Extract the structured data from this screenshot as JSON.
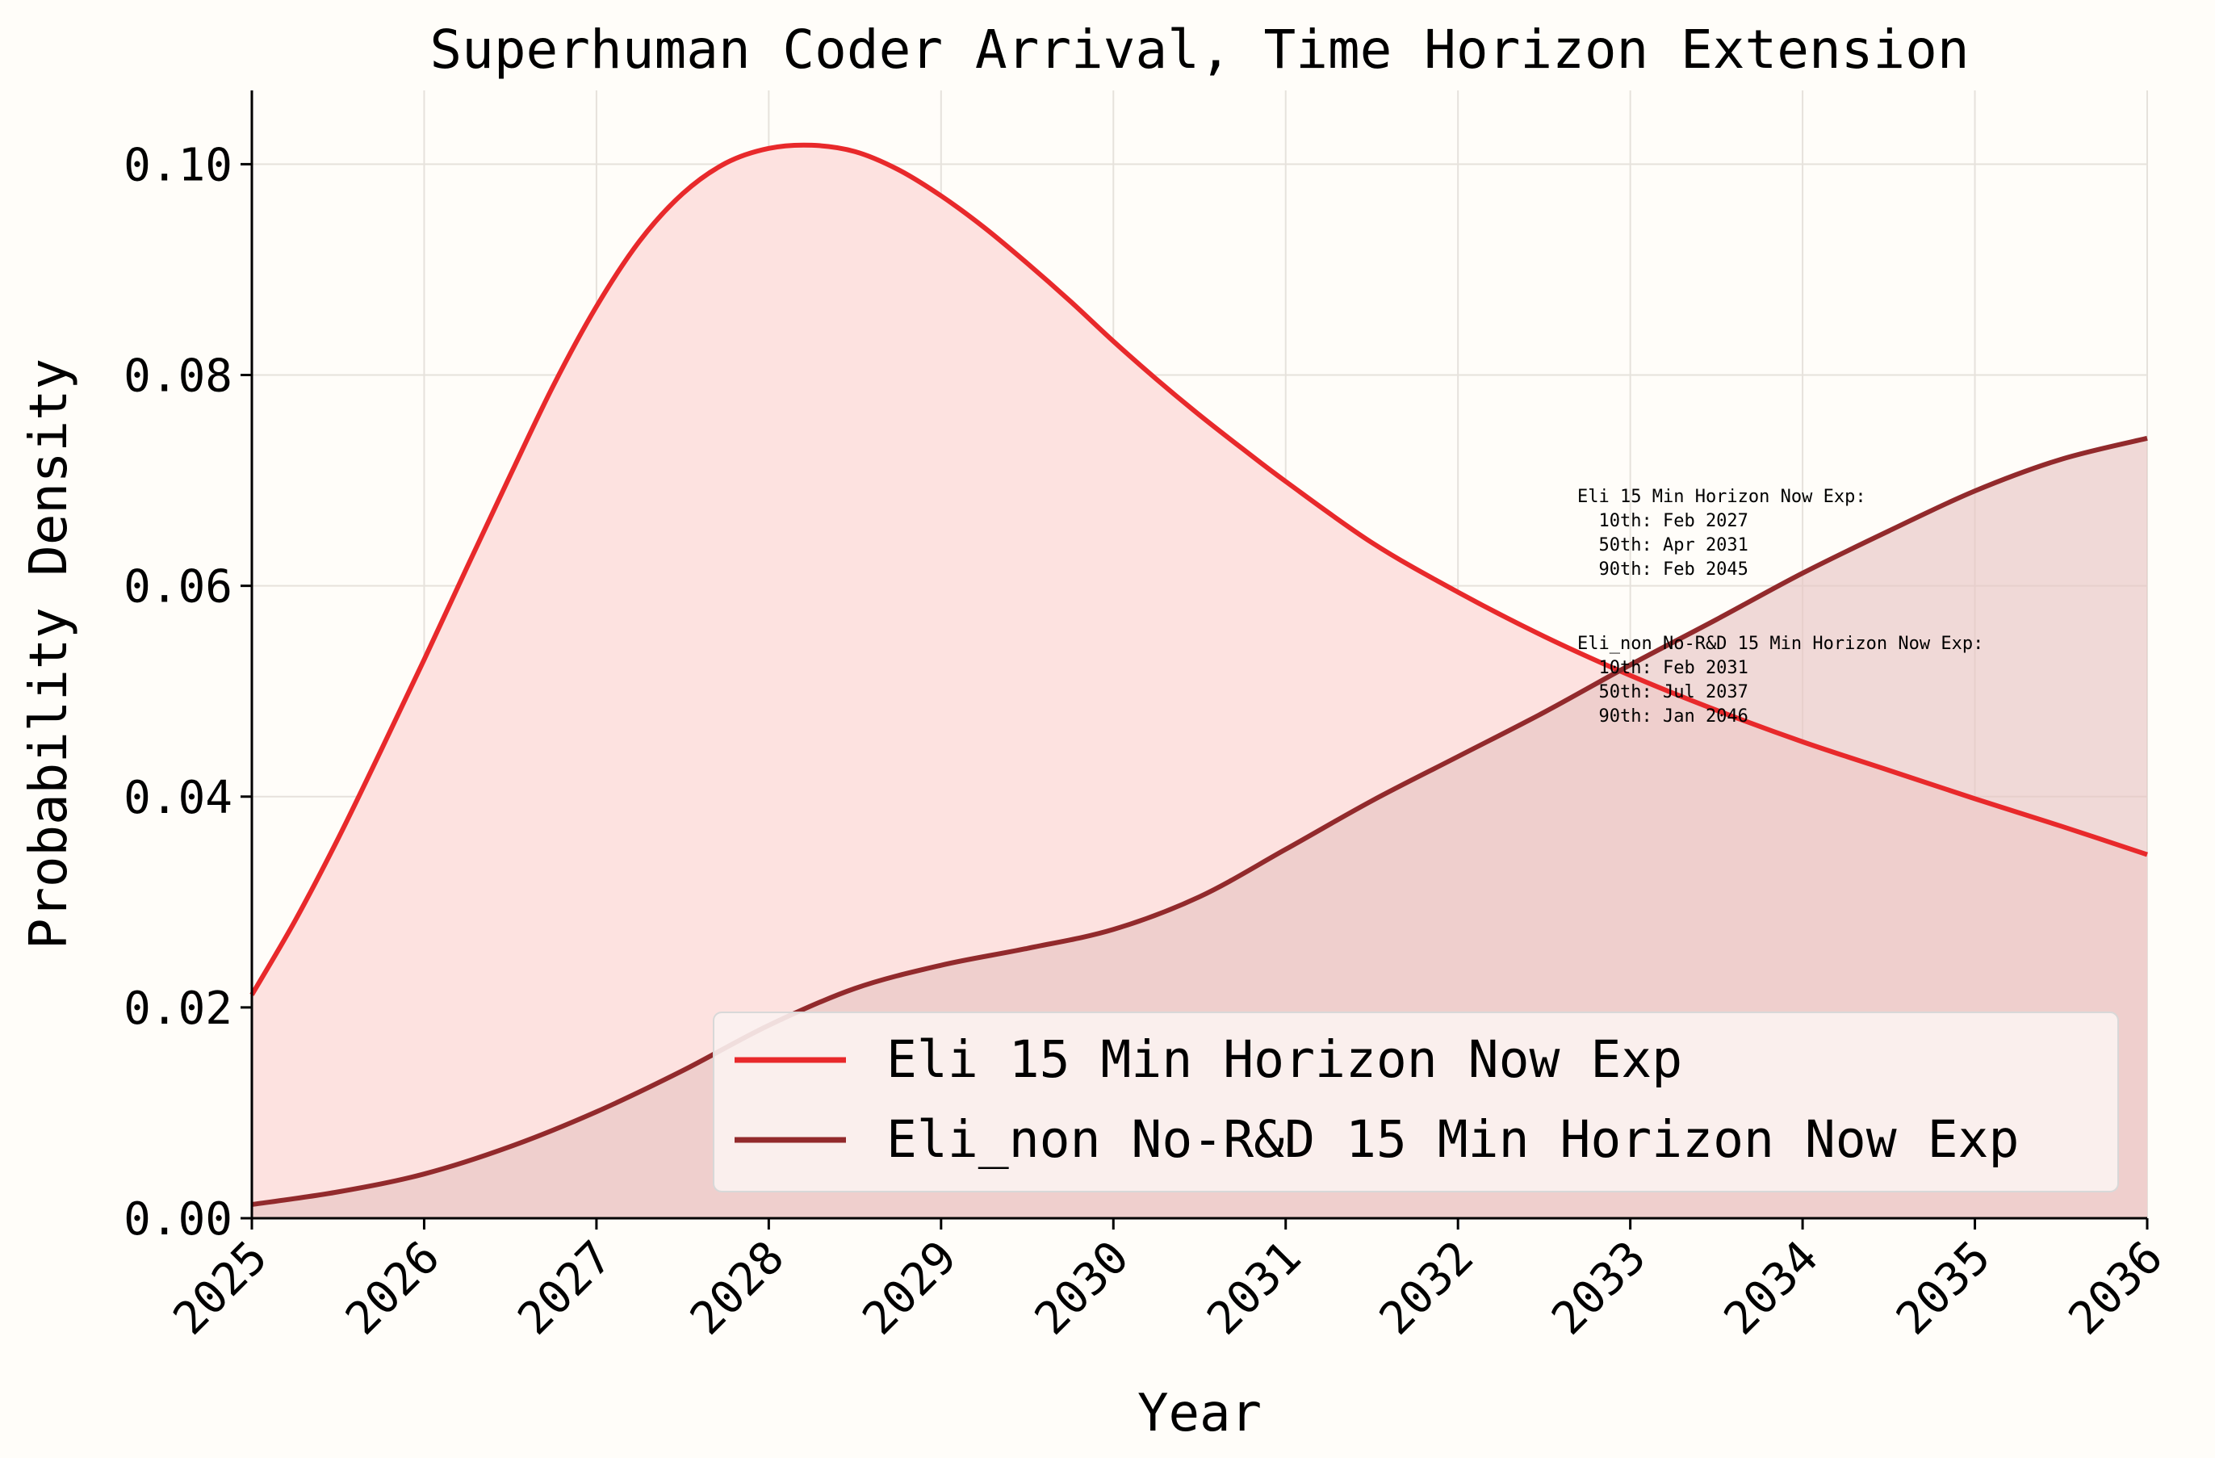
{
  "chart_data": {
    "type": "line",
    "title": "Superhuman Coder Arrival, Time Horizon Extension",
    "xlabel": "Year",
    "ylabel": "Probability Density",
    "xlim": [
      2025,
      2036
    ],
    "ylim": [
      0,
      0.107
    ],
    "x_ticks": [
      2025,
      2026,
      2027,
      2028,
      2029,
      2030,
      2031,
      2032,
      2033,
      2034,
      2035,
      2036
    ],
    "y_ticks": [
      0.0,
      0.02,
      0.04,
      0.06,
      0.08,
      0.1
    ],
    "y_tick_labels": [
      "0.00",
      "0.02",
      "0.04",
      "0.06",
      "0.08",
      "0.10"
    ],
    "grid": true,
    "legend_position": "lower-right",
    "series": [
      {
        "name": "Eli 15 Min Horizon Now Exp",
        "color": "#e8292b",
        "fill": "#fde2e0",
        "x": [
          2025,
          2025.25,
          2025.5,
          2025.75,
          2026,
          2026.25,
          2026.5,
          2026.75,
          2027,
          2027.25,
          2027.5,
          2027.75,
          2028,
          2028.25,
          2028.5,
          2028.75,
          2029,
          2029.25,
          2029.5,
          2029.75,
          2030,
          2030.25,
          2030.5,
          2030.75,
          2031,
          2031.5,
          2032,
          2032.5,
          2033,
          2033.5,
          2034,
          2034.5,
          2035,
          2035.5,
          2036
        ],
        "y": [
          0.0212,
          0.0282,
          0.036,
          0.0444,
          0.053,
          0.0618,
          0.0705,
          0.079,
          0.0865,
          0.0927,
          0.0972,
          0.1001,
          0.1015,
          0.1018,
          0.1012,
          0.0995,
          0.097,
          0.094,
          0.0906,
          0.087,
          0.0832,
          0.0796,
          0.0762,
          0.073,
          0.0699,
          0.0641,
          0.0594,
          0.0552,
          0.0515,
          0.0482,
          0.0452,
          0.0425,
          0.0398,
          0.0372,
          0.0345
        ]
      },
      {
        "name": "Eli_non No-R&D 15 Min Horizon Now Exp",
        "color": "#922a2c",
        "fill": "#e7c3c1",
        "x": [
          2025,
          2025.5,
          2026,
          2026.5,
          2027,
          2027.5,
          2028,
          2028.5,
          2029,
          2029.5,
          2030,
          2030.5,
          2031,
          2031.5,
          2032,
          2032.5,
          2033,
          2033.5,
          2034,
          2034.5,
          2035,
          2035.5,
          2036
        ],
        "y": [
          0.0013,
          0.0025,
          0.0042,
          0.0068,
          0.0101,
          0.014,
          0.0183,
          0.0218,
          0.024,
          0.0256,
          0.0274,
          0.0305,
          0.035,
          0.0396,
          0.0438,
          0.048,
          0.0525,
          0.0568,
          0.0612,
          0.0652,
          0.069,
          0.072,
          0.074
        ]
      }
    ],
    "annotations": [
      {
        "lines": [
          "Eli 15 Min Horizon Now Exp:",
          "  10th: Feb 2027",
          "  50th: Apr 2031",
          "  90th: Feb 2045"
        ]
      },
      {
        "lines": [
          "Eli_non No-R&D 15 Min Horizon Now Exp:",
          "  10th: Feb 2031",
          "  50th: Jul 2037",
          "  90th: Jan 2046"
        ]
      }
    ]
  }
}
